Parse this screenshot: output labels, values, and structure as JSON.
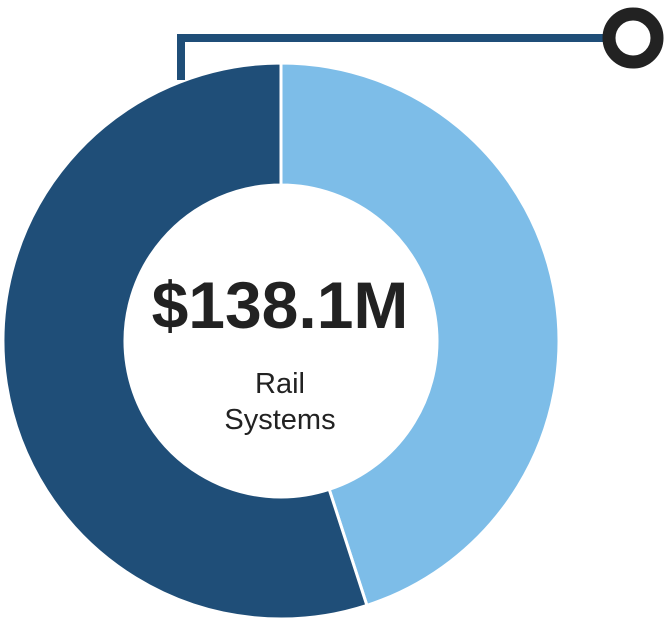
{
  "chart_data": {
    "type": "pie",
    "donut": true,
    "values": [
      45,
      55
    ],
    "colors": [
      "#7dbde8",
      "#1f4e78"
    ],
    "center_value": "$138.1M",
    "center_label": "Rail\nSystems"
  },
  "connector_color": "#1f4e78",
  "marker_color": "#222222"
}
